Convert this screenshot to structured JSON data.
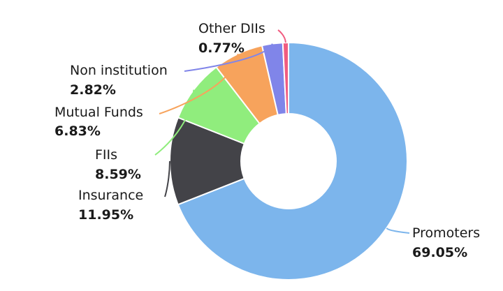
{
  "chart_data": {
    "type": "pie",
    "variant": "donut",
    "start_angle_deg": 0,
    "clockwise": true,
    "slices": [
      {
        "name": "Promoters",
        "value": 69.05,
        "label": "69.05%",
        "color": "#7cb5ec"
      },
      {
        "name": "Insurance",
        "value": 11.95,
        "label": "11.95%",
        "color": "#434348"
      },
      {
        "name": "FIIs",
        "value": 8.59,
        "label": "8.59%",
        "color": "#90ed7d"
      },
      {
        "name": "Mutual Funds",
        "value": 6.83,
        "label": "6.83%",
        "color": "#f7a35c"
      },
      {
        "name": "Non institution",
        "value": 2.82,
        "label": "2.82%",
        "color": "#8085e9"
      },
      {
        "name": "Other DIIs",
        "value": 0.77,
        "label": "0.77%",
        "color": "#f15c80"
      }
    ]
  }
}
